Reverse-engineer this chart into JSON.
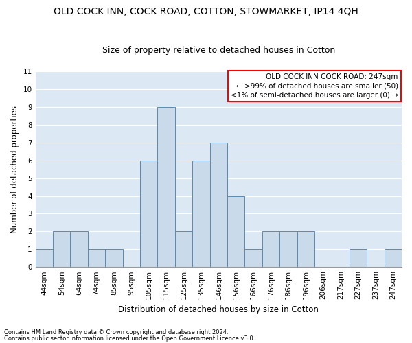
{
  "title": "OLD COCK INN, COCK ROAD, COTTON, STOWMARKET, IP14 4QH",
  "subtitle": "Size of property relative to detached houses in Cotton",
  "xlabel": "Distribution of detached houses by size in Cotton",
  "ylabel": "Number of detached properties",
  "categories": [
    "44sqm",
    "54sqm",
    "64sqm",
    "74sqm",
    "85sqm",
    "95sqm",
    "105sqm",
    "115sqm",
    "125sqm",
    "135sqm",
    "146sqm",
    "156sqm",
    "166sqm",
    "176sqm",
    "186sqm",
    "196sqm",
    "206sqm",
    "217sqm",
    "227sqm",
    "237sqm",
    "247sqm"
  ],
  "values": [
    1,
    2,
    2,
    1,
    1,
    0,
    6,
    9,
    2,
    6,
    7,
    4,
    1,
    2,
    2,
    2,
    0,
    0,
    1,
    0,
    1
  ],
  "bar_color": "#c9daea",
  "bar_edge_color": "#5a8ab0",
  "ylim": [
    0,
    11
  ],
  "yticks": [
    0,
    1,
    2,
    3,
    4,
    5,
    6,
    7,
    8,
    9,
    10,
    11
  ],
  "legend_title": "OLD COCK INN COCK ROAD: 247sqm",
  "legend_line1": "← >99% of detached houses are smaller (50)",
  "legend_line2": "<1% of semi-detached houses are larger (0) →",
  "footnote1": "Contains HM Land Registry data © Crown copyright and database right 2024.",
  "footnote2": "Contains public sector information licensed under the Open Government Licence v3.0.",
  "grid_color": "#ffffff",
  "bg_color": "#dce9f5",
  "title_fontsize": 10,
  "subtitle_fontsize": 9,
  "tick_fontsize": 7.5,
  "ylabel_fontsize": 8.5,
  "xlabel_fontsize": 8.5,
  "legend_fontsize": 7.5,
  "footnote_fontsize": 6
}
